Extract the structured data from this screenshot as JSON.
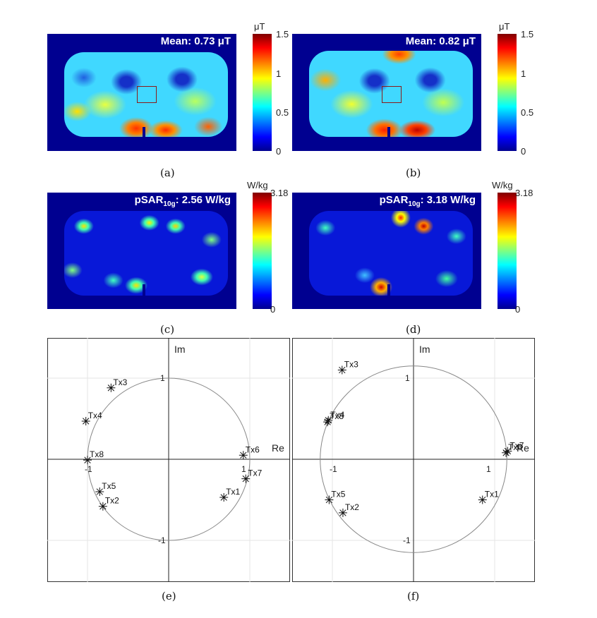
{
  "panels": {
    "a": {
      "label": "(a)",
      "title": "Mean: 0.73 μT",
      "unit": "μT",
      "ticks": [
        "1.5",
        "1",
        "0.5",
        "0"
      ]
    },
    "b": {
      "label": "(b)",
      "title": "Mean: 0.82 μT",
      "unit": "μT",
      "ticks": [
        "1.5",
        "1",
        "0.5",
        "0"
      ]
    },
    "c": {
      "label": "(c)",
      "title_main": "pSAR",
      "title_sub": "10g",
      "title_value": ": 2.56 W/kg",
      "unit": "W/kg",
      "ticks": [
        "3.18",
        "0"
      ]
    },
    "d": {
      "label": "(d)",
      "title_main": "pSAR",
      "title_sub": "10g",
      "title_value": ": 3.18 W/kg",
      "unit": "W/kg",
      "ticks": [
        "3.18",
        "0"
      ]
    }
  },
  "chart_data": [
    {
      "type": "scatter",
      "panel_label": "(e)",
      "xlabel": "Re",
      "ylabel": "Im",
      "xlim": [
        -1.5,
        1.5
      ],
      "ylim": [
        -1.5,
        1.5
      ],
      "axis_ticks": [
        "1",
        "-1",
        "1",
        "-1"
      ],
      "circle_radius": 1.0,
      "points": [
        {
          "name": "Tx1",
          "x": 0.68,
          "y": -0.47
        },
        {
          "name": "Tx2",
          "x": -0.81,
          "y": -0.58
        },
        {
          "name": "Tx3",
          "x": -0.71,
          "y": 0.88
        },
        {
          "name": "Tx4",
          "x": -1.02,
          "y": 0.47
        },
        {
          "name": "Tx5",
          "x": -0.85,
          "y": -0.4
        },
        {
          "name": "Tx6",
          "x": 0.92,
          "y": 0.05
        },
        {
          "name": "Tx7",
          "x": 0.95,
          "y": -0.24
        },
        {
          "name": "Tx8",
          "x": -1.0,
          "y": -0.01
        }
      ]
    },
    {
      "type": "scatter",
      "panel_label": "(f)",
      "xlabel": "Re",
      "ylabel": "Im",
      "xlim": [
        -1.5,
        1.5
      ],
      "ylim": [
        -1.5,
        1.5
      ],
      "axis_ticks": [
        "1",
        "-1",
        "1",
        "-1"
      ],
      "circle_radius": 1.15,
      "points": [
        {
          "name": "Tx1",
          "x": 0.85,
          "y": -0.5
        },
        {
          "name": "Tx2",
          "x": -0.87,
          "y": -0.66
        },
        {
          "name": "Tx3",
          "x": -0.88,
          "y": 1.1
        },
        {
          "name": "Tx4",
          "x": -1.05,
          "y": 0.48
        },
        {
          "name": "Tx5",
          "x": -1.04,
          "y": -0.5
        },
        {
          "name": "Tx6",
          "x": 1.14,
          "y": 0.08
        },
        {
          "name": "Tx7",
          "x": 1.16,
          "y": 0.1
        },
        {
          "name": "Tx8",
          "x": -1.06,
          "y": 0.46
        }
      ]
    }
  ]
}
